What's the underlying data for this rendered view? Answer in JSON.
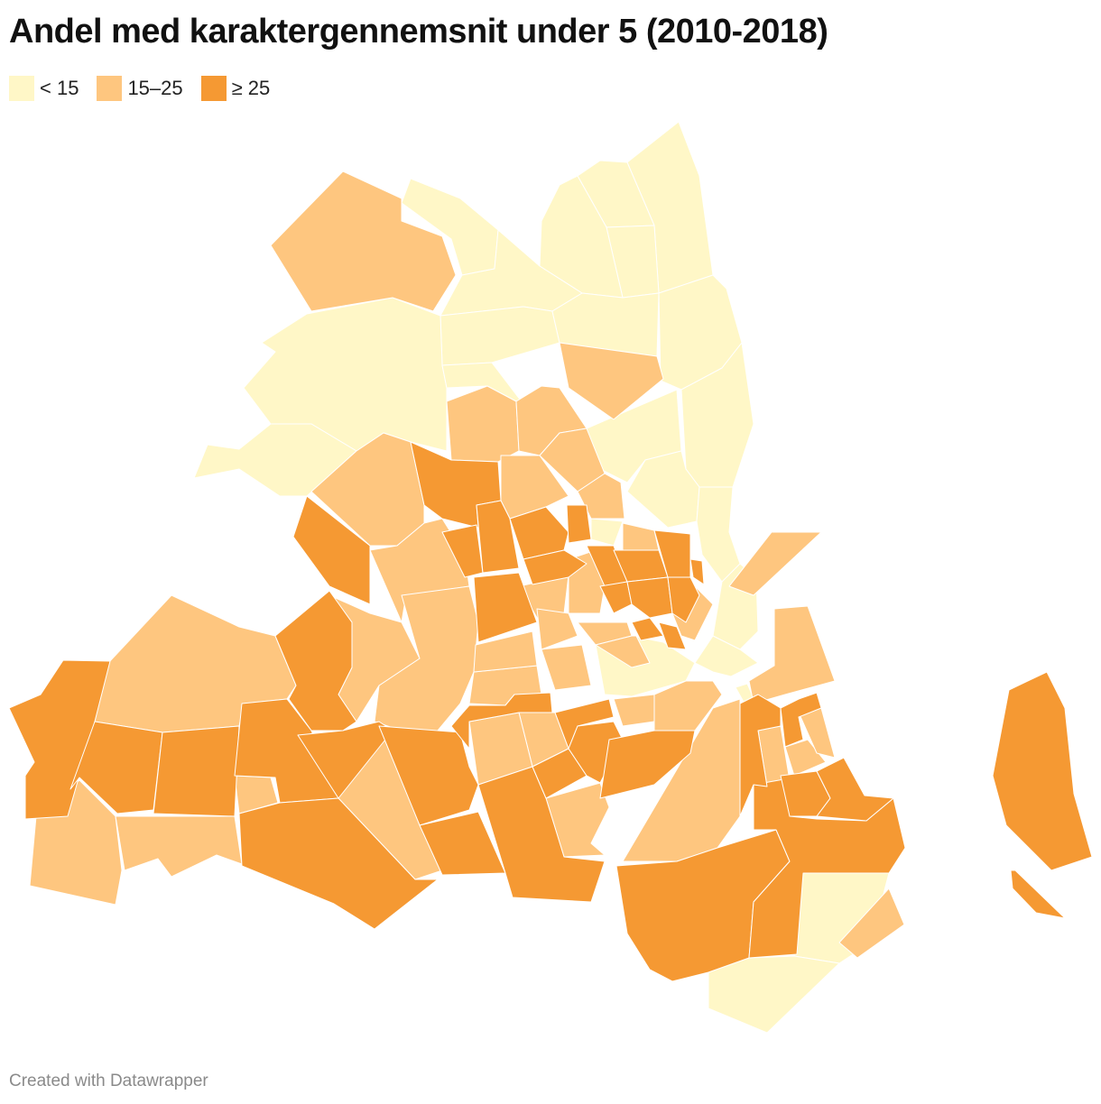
{
  "title": "Andel med karaktergennemsnit under 5 (2010-2018)",
  "legend": [
    {
      "label": "< 15",
      "color": "#fff7c7"
    },
    {
      "label": "15–25",
      "color": "#fec67f"
    },
    {
      "label": "≥ 25",
      "color": "#f59933"
    }
  ],
  "footer": "Created with Datawrapper"
}
